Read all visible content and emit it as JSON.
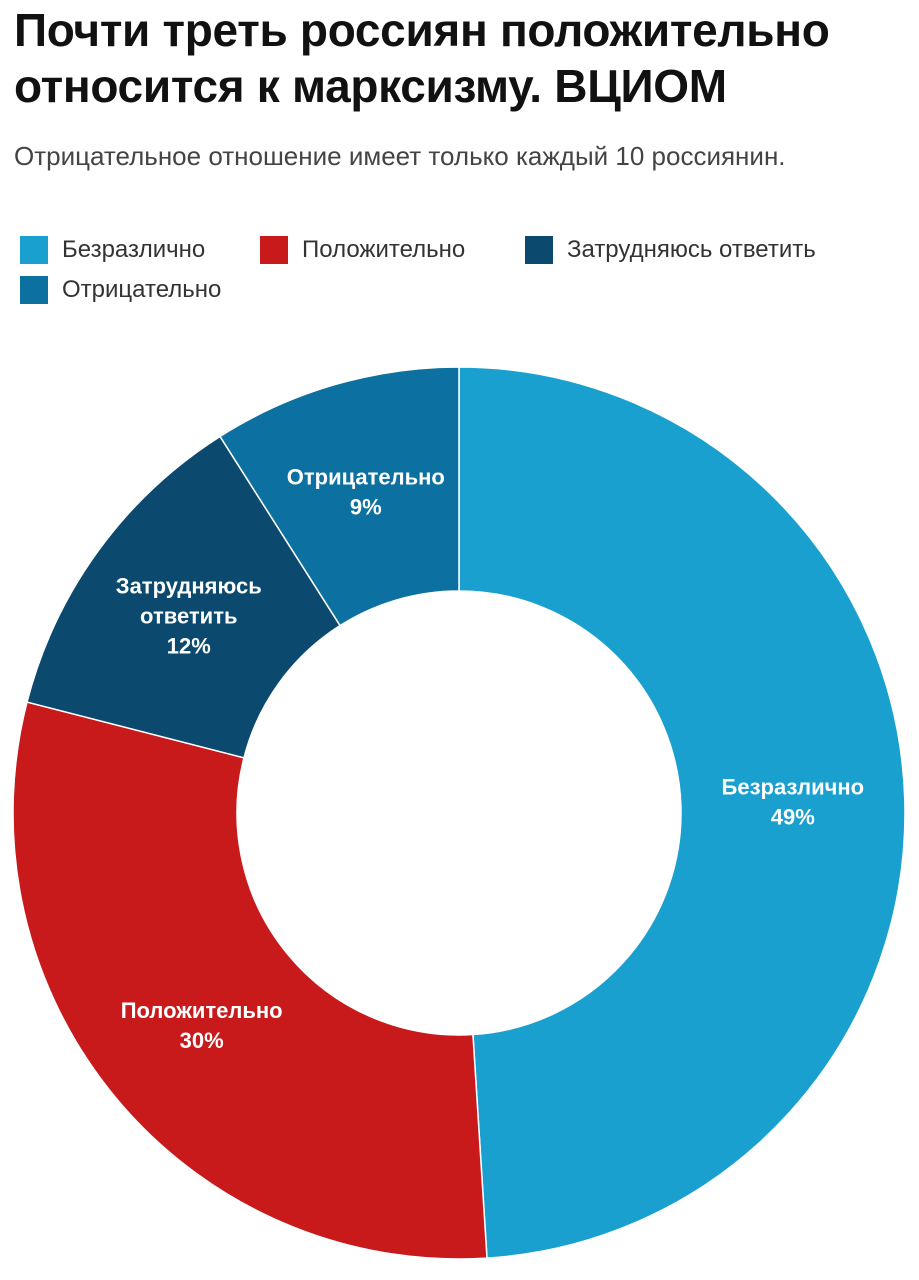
{
  "title": "Почти треть россиян положительно относится к марксизму. ВЦИОМ",
  "subtitle": "Отрицательное отношение имеет только каждый 10 россиянин.",
  "legend": [
    {
      "label": "Безразлично",
      "color": "#1aa0cf"
    },
    {
      "label": "Положительно",
      "color": "#c8191b"
    },
    {
      "label": "Затрудняюсь ответить",
      "color": "#0b4a6e"
    },
    {
      "label": "Отрицательно",
      "color": "#0c70a0"
    }
  ],
  "chart_data": {
    "type": "pie",
    "variant": "donut",
    "title": "Почти треть россиян положительно относится к марксизму. ВЦИОМ",
    "subtitle": "Отрицательное отношение имеет только каждый 10 россиянин.",
    "legend_position": "top-left",
    "unit": "%",
    "slices": [
      {
        "name": "Безразлично",
        "value": 49,
        "label": "Безразлично",
        "value_label": "49%",
        "color": "#1aa0cf"
      },
      {
        "name": "Положительно",
        "value": 30,
        "label": "Положительно",
        "value_label": "30%",
        "color": "#c8191b"
      },
      {
        "name": "Затрудняюсь ответить",
        "value": 12,
        "label": "Затрудняюсь ответить",
        "value_label": "12%",
        "color": "#0b4a6e"
      },
      {
        "name": "Отрицательно",
        "value": 9,
        "label": "Отрицательно",
        "value_label": "9%",
        "color": "#0c70a0"
      }
    ]
  }
}
